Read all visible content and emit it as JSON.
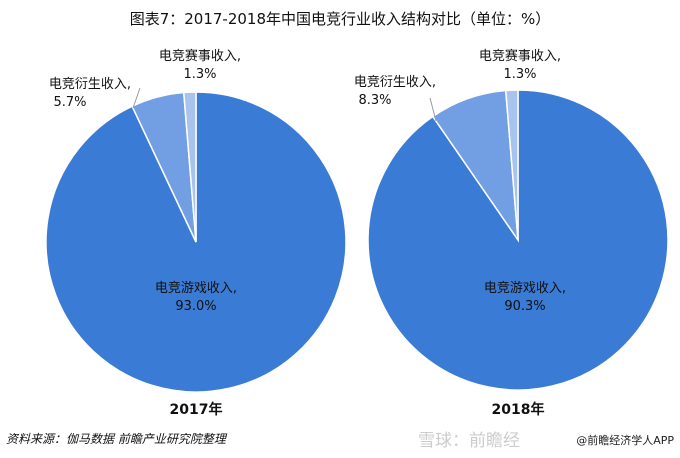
{
  "title": "图表7：2017-2018年中国电竞行业收入结构对比（单位：%）",
  "source": "资料来源：伽马数据 前瞻产业研究院整理",
  "watermark": "雪球：前瞻经",
  "credit": "@前瞻经济学人APP",
  "chart_data": [
    {
      "type": "pie",
      "xlabel": "2017年",
      "slices": [
        {
          "label": "电竞游戏收入",
          "value": 93.0,
          "text": "93.0%",
          "color": "#3A7BD5"
        },
        {
          "label": "电竞衍生收入",
          "value": 5.7,
          "text": "5.7%",
          "color": "#729FE3"
        },
        {
          "label": "电竞赛事收入",
          "value": 1.3,
          "text": "1.3%",
          "color": "#A8C3EE"
        }
      ]
    },
    {
      "type": "pie",
      "xlabel": "2018年",
      "slices": [
        {
          "label": "电竞游戏收入",
          "value": 90.3,
          "text": "90.3%",
          "color": "#3A7BD5"
        },
        {
          "label": "电竞衍生收入",
          "value": 8.3,
          "text": "8.3%",
          "color": "#729FE3"
        },
        {
          "label": "电竞赛事收入",
          "value": 1.3,
          "text": "1.3%",
          "color": "#A8C3EE"
        }
      ]
    }
  ]
}
